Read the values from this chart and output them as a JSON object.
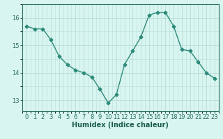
{
  "x": [
    0,
    1,
    2,
    3,
    4,
    5,
    6,
    7,
    8,
    9,
    10,
    11,
    12,
    13,
    14,
    15,
    16,
    17,
    18,
    19,
    20,
    21,
    22,
    23
  ],
  "y": [
    15.7,
    15.6,
    15.6,
    15.2,
    14.6,
    14.3,
    14.1,
    14.0,
    13.85,
    13.4,
    12.9,
    13.2,
    14.3,
    14.8,
    15.3,
    16.1,
    16.2,
    16.2,
    15.7,
    14.85,
    14.8,
    14.4,
    14.0,
    13.8
  ],
  "line_color": "#2e8b7a",
  "marker": "D",
  "marker_size": 2.5,
  "bg_color": "#d8f5f0",
  "grid_color": "#b8dcd8",
  "xlabel": "Humidex (Indice chaleur)",
  "xlim": [
    -0.5,
    23.5
  ],
  "ylim": [
    12.6,
    16.5
  ],
  "yticks": [
    13,
    14,
    15,
    16
  ],
  "xticks": [
    0,
    1,
    2,
    3,
    4,
    5,
    6,
    7,
    8,
    9,
    10,
    11,
    12,
    13,
    14,
    15,
    16,
    17,
    18,
    19,
    20,
    21,
    22,
    23
  ],
  "label_fontsize": 7,
  "tick_fontsize": 6,
  "tick_color": "#2e7060",
  "spine_color": "#2e7060",
  "label_color": "#1a5c4a"
}
